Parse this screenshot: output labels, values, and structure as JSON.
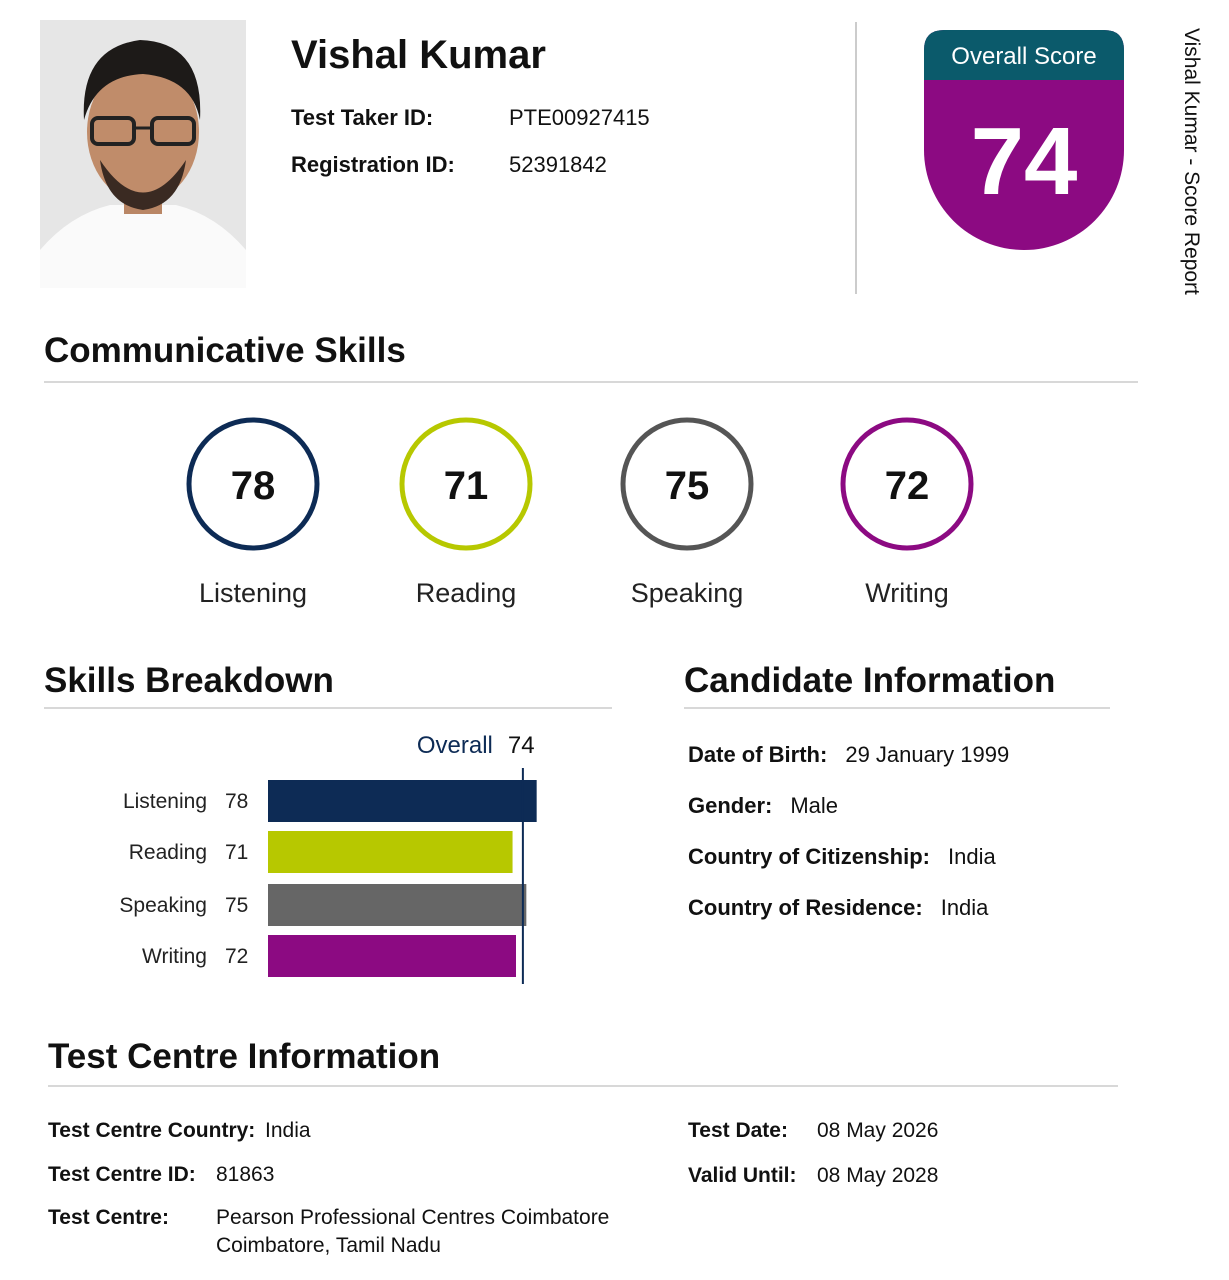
{
  "header": {
    "name": "Vishal Kumar",
    "fields": [
      {
        "label": "Test Taker ID:",
        "value": "PTE00927415"
      },
      {
        "label": "Registration ID:",
        "value": "52391842"
      }
    ]
  },
  "overall": {
    "title": "Overall Score",
    "score": 74
  },
  "side_label": "Vishal Kumar - Score Report",
  "communicative": {
    "title": "Communicative Skills",
    "skills": [
      {
        "name": "Listening",
        "score": 78,
        "color": "#0d2b55"
      },
      {
        "name": "Reading",
        "score": 71,
        "color": "#b7c800"
      },
      {
        "name": "Speaking",
        "score": 75,
        "color": "#555555"
      },
      {
        "name": "Writing",
        "score": 72,
        "color": "#8c0a82"
      }
    ]
  },
  "breakdown": {
    "title": "Skills Breakdown",
    "overall_label": "Overall",
    "overall": 74,
    "overall_color": "#0d2b55",
    "xlim": [
      0,
      90
    ],
    "categories": [
      "Listening",
      "Reading",
      "Speaking",
      "Writing"
    ],
    "values": [
      78,
      71,
      75,
      72
    ],
    "colors": [
      "#0d2b55",
      "#b7c800",
      "#666666",
      "#8c0a82"
    ]
  },
  "candidate": {
    "title": "Candidate Information",
    "fields": [
      {
        "label": "Date of Birth:",
        "value": "29 January 1999"
      },
      {
        "label": "Gender:",
        "value": "Male"
      },
      {
        "label": "Country of Citizenship:",
        "value": "India"
      },
      {
        "label": "Country of Residence:",
        "value": "India"
      }
    ]
  },
  "test_centre": {
    "title": "Test Centre Information",
    "left": [
      {
        "label": "Test Centre Country:",
        "value": [
          "India"
        ]
      },
      {
        "label": "Test Centre ID:",
        "value": [
          "81863"
        ]
      },
      {
        "label": "Test Centre:",
        "value": [
          "Pearson Professional Centres Coimbatore",
          "Coimbatore, Tamil Nadu"
        ]
      }
    ],
    "right": [
      {
        "label": "Test Date:",
        "value": [
          "08 May 2026"
        ]
      },
      {
        "label": "Valid Until:",
        "value": [
          "08 May 2028"
        ]
      }
    ]
  }
}
